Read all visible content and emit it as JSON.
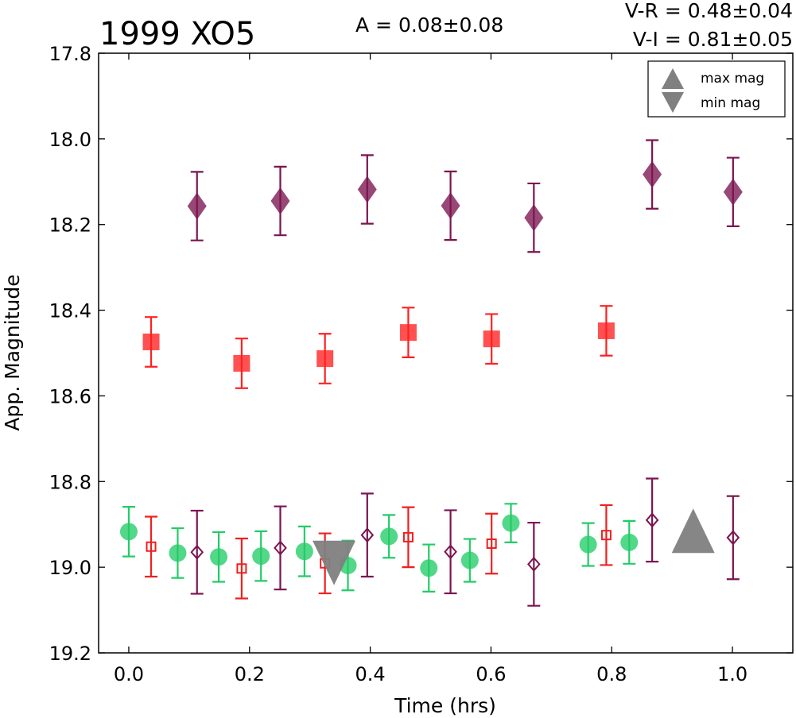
{
  "chart_data": {
    "type": "scatter",
    "title": "1999 XO5",
    "amplitude_text": "A  = 0.08±0.08",
    "color_text": [
      "V-R = 0.48±0.04",
      "V-I  = 0.81±0.05"
    ],
    "xlabel": "Time (hrs)",
    "ylabel": "App. Magnitude",
    "xlim": [
      -0.05,
      1.1
    ],
    "ylim": [
      19.2,
      17.8
    ],
    "y_inverted": true,
    "x_ticks": [
      "0.0",
      "0.2",
      "0.4",
      "0.6",
      "0.8",
      "1.0"
    ],
    "y_ticks": [
      "17.8",
      "18.0",
      "18.2",
      "18.4",
      "18.6",
      "18.8",
      "19.0",
      "19.2"
    ],
    "grid": false,
    "legend": {
      "placement": "top-right",
      "entries": [
        {
          "label": "max mag",
          "marker": "triangle-up",
          "color": "#808080"
        },
        {
          "label": "min mag",
          "marker": "triangle-down",
          "color": "#808080"
        }
      ]
    },
    "series": [
      {
        "marker": "diamond",
        "filled": true,
        "color": "#7b1450",
        "points": [
          {
            "x": 0.113,
            "y": 18.157,
            "err": 0.08
          },
          {
            "x": 0.251,
            "y": 18.145,
            "err": 0.08
          },
          {
            "x": 0.395,
            "y": 18.118,
            "err": 0.08
          },
          {
            "x": 0.533,
            "y": 18.156,
            "err": 0.08
          },
          {
            "x": 0.671,
            "y": 18.184,
            "err": 0.08
          },
          {
            "x": 0.867,
            "y": 18.083,
            "err": 0.08
          },
          {
            "x": 1.001,
            "y": 18.124,
            "err": 0.08
          }
        ]
      },
      {
        "marker": "square",
        "filled": true,
        "color": "#ff2020",
        "points": [
          {
            "x": 0.037,
            "y": 18.474,
            "err": 0.058
          },
          {
            "x": 0.187,
            "y": 18.524,
            "err": 0.058
          },
          {
            "x": 0.325,
            "y": 18.513,
            "err": 0.058
          },
          {
            "x": 0.463,
            "y": 18.452,
            "err": 0.058
          },
          {
            "x": 0.601,
            "y": 18.467,
            "err": 0.058
          },
          {
            "x": 0.791,
            "y": 18.448,
            "err": 0.058
          }
        ]
      },
      {
        "marker": "circle",
        "filled": true,
        "color": "#22cc66",
        "points": [
          {
            "x": 0.0,
            "y": 18.917,
            "err": 0.058
          },
          {
            "x": 0.081,
            "y": 18.967,
            "err": 0.058
          },
          {
            "x": 0.149,
            "y": 18.976,
            "err": 0.058
          },
          {
            "x": 0.219,
            "y": 18.974,
            "err": 0.058
          },
          {
            "x": 0.291,
            "y": 18.963,
            "err": 0.058
          },
          {
            "x": 0.363,
            "y": 18.996,
            "err": 0.058
          },
          {
            "x": 0.431,
            "y": 18.928,
            "err": 0.05
          },
          {
            "x": 0.497,
            "y": 19.002,
            "err": 0.055
          },
          {
            "x": 0.565,
            "y": 18.984,
            "err": 0.05
          },
          {
            "x": 0.633,
            "y": 18.897,
            "err": 0.045
          },
          {
            "x": 0.761,
            "y": 18.947,
            "err": 0.05
          },
          {
            "x": 0.829,
            "y": 18.942,
            "err": 0.05
          }
        ]
      },
      {
        "marker": "square",
        "filled": false,
        "color": "#ee2020",
        "points": [
          {
            "x": 0.037,
            "y": 18.952,
            "err": 0.07
          },
          {
            "x": 0.187,
            "y": 19.003,
            "err": 0.07
          },
          {
            "x": 0.325,
            "y": 18.991,
            "err": 0.07
          },
          {
            "x": 0.463,
            "y": 18.93,
            "err": 0.07
          },
          {
            "x": 0.601,
            "y": 18.945,
            "err": 0.07
          },
          {
            "x": 0.791,
            "y": 18.925,
            "err": 0.07
          }
        ]
      },
      {
        "marker": "diamond",
        "filled": false,
        "color": "#7b1450",
        "points": [
          {
            "x": 0.113,
            "y": 18.965,
            "err": 0.097
          },
          {
            "x": 0.251,
            "y": 18.955,
            "err": 0.097
          },
          {
            "x": 0.395,
            "y": 18.925,
            "err": 0.097
          },
          {
            "x": 0.533,
            "y": 18.964,
            "err": 0.097
          },
          {
            "x": 0.671,
            "y": 18.993,
            "err": 0.097
          },
          {
            "x": 0.867,
            "y": 18.89,
            "err": 0.097
          },
          {
            "x": 1.001,
            "y": 18.931,
            "err": 0.097
          }
        ]
      }
    ],
    "extrema_markers": [
      {
        "type": "max",
        "marker": "triangle-up",
        "x": 0.935,
        "y": 18.915,
        "color": "#808080"
      },
      {
        "type": "min",
        "marker": "triangle-down",
        "x": 0.34,
        "y": 18.99,
        "color": "#808080"
      }
    ]
  }
}
